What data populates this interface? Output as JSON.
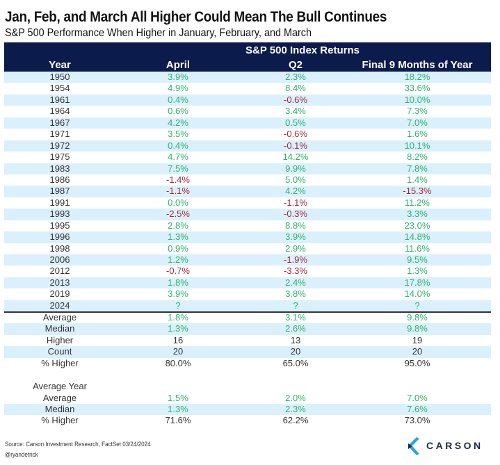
{
  "title": "Jan, Feb, and March All Higher Could Mean The Bull Continues",
  "subtitle": "S&P 500 Performance When Higher in January, February, and March",
  "colors": {
    "header_bg": "#0b1b4b",
    "row_shade": "#daf0fc",
    "positive": "#2fb36a",
    "negative": "#a3283b",
    "logo_blue": "#29a3e8"
  },
  "chart_data": {
    "type": "table",
    "title": "Jan, Feb, and March All Higher Could Mean The Bull Continues",
    "subtitle": "S&P 500 Performance When Higher in January, February, and March",
    "group_header": "S&P 500 Index Returns",
    "columns": [
      "Year",
      "April",
      "Q2",
      "Final 9 Months of Year"
    ],
    "rows": [
      [
        "1950",
        "3.9%",
        "2.3%",
        "18.2%"
      ],
      [
        "1954",
        "4.9%",
        "8.4%",
        "33.6%"
      ],
      [
        "1961",
        "0.4%",
        "-0.6%",
        "10.0%"
      ],
      [
        "1964",
        "0.6%",
        "3.4%",
        "7.3%"
      ],
      [
        "1967",
        "4.2%",
        "0.5%",
        "7.0%"
      ],
      [
        "1971",
        "3.5%",
        "-0.6%",
        "1.6%"
      ],
      [
        "1972",
        "0.4%",
        "-0.1%",
        "10.1%"
      ],
      [
        "1975",
        "4.7%",
        "14.2%",
        "8.2%"
      ],
      [
        "1983",
        "7.5%",
        "9.9%",
        "7.8%"
      ],
      [
        "1986",
        "-1.4%",
        "5.0%",
        "1.4%"
      ],
      [
        "1987",
        "-1.1%",
        "4.2%",
        "-15.3%"
      ],
      [
        "1991",
        "0.0%",
        "-1.1%",
        "11.2%"
      ],
      [
        "1993",
        "-2.5%",
        "-0.3%",
        "3.3%"
      ],
      [
        "1995",
        "2.8%",
        "8.8%",
        "23.0%"
      ],
      [
        "1996",
        "1.3%",
        "3.9%",
        "14.8%"
      ],
      [
        "1998",
        "0.9%",
        "2.9%",
        "11.6%"
      ],
      [
        "2006",
        "1.2%",
        "-1.9%",
        "9.5%"
      ],
      [
        "2012",
        "-0.7%",
        "-3.3%",
        "1.3%"
      ],
      [
        "2013",
        "1.8%",
        "2.4%",
        "17.8%"
      ],
      [
        "2019",
        "3.9%",
        "3.8%",
        "14.0%"
      ],
      [
        "2024",
        "?",
        "?",
        "?"
      ]
    ],
    "summary": [
      [
        "Average",
        "1.8%",
        "3.1%",
        "9.8%"
      ],
      [
        "Median",
        "1.3%",
        "2.6%",
        "9.8%"
      ],
      [
        "Higher",
        "16",
        "13",
        "19"
      ],
      [
        "Count",
        "20",
        "20",
        "20"
      ],
      [
        "% Higher",
        "80.0%",
        "65.0%",
        "95.0%"
      ]
    ],
    "average_year_label": "Average Year",
    "average_year": [
      [
        "Average",
        "1.5%",
        "2.0%",
        "7.0%"
      ],
      [
        "Median",
        "1.3%",
        "2.3%",
        "7.6%"
      ],
      [
        "% Higher",
        "71.6%",
        "62.2%",
        "73.0%"
      ]
    ]
  },
  "footer": {
    "source": "Source: Carson Investment Research, FactSet 03/24/2024",
    "handle": "@ryandetrick",
    "logo_text": "CARSON"
  }
}
